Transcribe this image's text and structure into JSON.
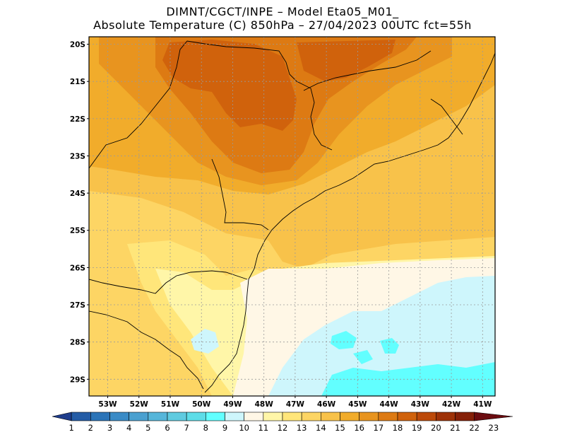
{
  "header": {
    "title_line1": "DIMNT/CGCT/INPE  –   Model Eta05_M01_",
    "title_line2": "Absolute Temperature (C) 850hPa  –  27/04/2023 00UTC fct=55h"
  },
  "axes": {
    "lat_labels": [
      "20S",
      "21S",
      "22S",
      "23S",
      "24S",
      "25S",
      "26S",
      "27S",
      "28S",
      "29S"
    ],
    "lat_values": [
      20,
      21,
      22,
      23,
      24,
      25,
      26,
      27,
      28,
      29
    ],
    "lon_labels": [
      "53W",
      "52W",
      "51W",
      "50W",
      "49W",
      "48W",
      "47W",
      "46W",
      "45W",
      "44W",
      "43W",
      "42W",
      "41W"
    ],
    "lon_values": [
      53,
      52,
      51,
      50,
      49,
      48,
      47,
      46,
      45,
      44,
      43,
      42,
      41
    ],
    "lon_range": [
      53.6,
      40.6
    ],
    "lat_range": [
      19.8,
      29.45
    ]
  },
  "colorbar": {
    "labels": [
      "1",
      "2",
      "3",
      "4",
      "5",
      "6",
      "7",
      "8",
      "9",
      "10",
      "11",
      "12",
      "13",
      "14",
      "15",
      "16",
      "17",
      "18",
      "19",
      "20",
      "21",
      "22",
      "23"
    ],
    "colors": [
      "#1e3c8c",
      "#245ca6",
      "#2b74b8",
      "#3a8bc6",
      "#4aa0d0",
      "#56b6da",
      "#5fcbe0",
      "#5ddde8",
      "#62ffff",
      "#cef6fc",
      "#fff7e6",
      "#fff6a8",
      "#ffe67a",
      "#fdd564",
      "#f8c24a",
      "#f1ac2b",
      "#e8941f",
      "#dd7a13",
      "#d0620c",
      "#bc4a0a",
      "#9e3208",
      "#852008",
      "#6b0c10"
    ]
  },
  "field_colors": {
    "t10": "#cef6fc",
    "t11": "#fff7e6",
    "t12": "#fff6a8",
    "t13": "#ffe67a",
    "t14": "#fdd564",
    "t15": "#f8c24a",
    "t16": "#f1ac2b",
    "t17": "#e8941f",
    "t18": "#dd7a13",
    "t19": "#d0620c",
    "t9": "#62ffff"
  }
}
